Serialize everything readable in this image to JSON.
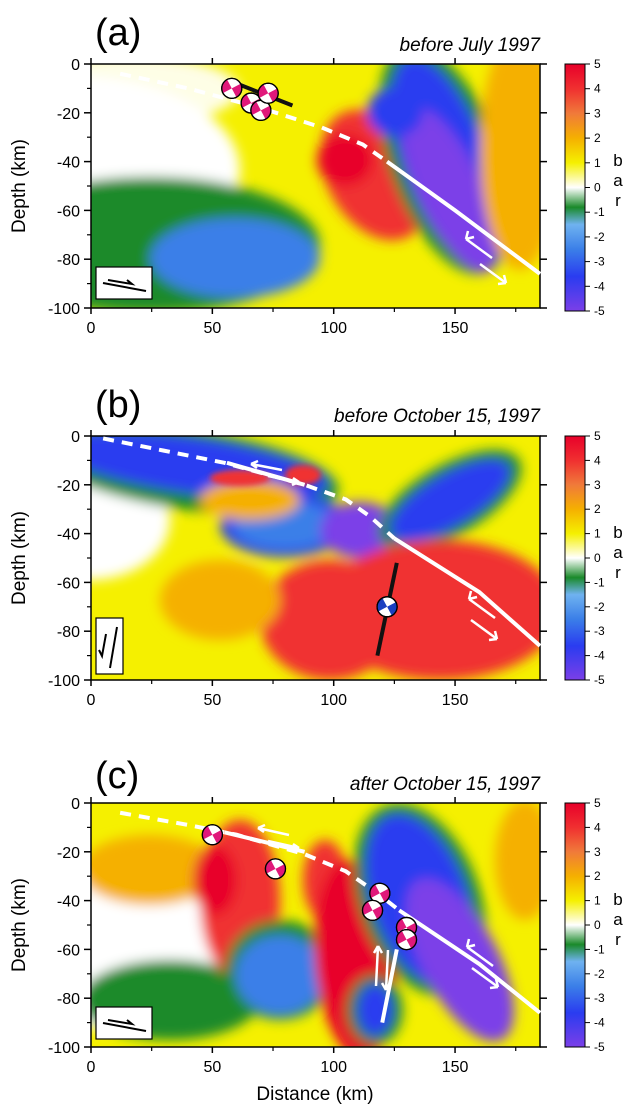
{
  "figure": {
    "xlabel": "Distance (km)",
    "colorbar": {
      "unit_letters": [
        "b",
        "a",
        "r"
      ],
      "ticks": [
        5,
        4,
        3,
        2,
        1,
        0,
        -1,
        -2,
        -3,
        -4,
        -5
      ],
      "range": [
        -5,
        5
      ],
      "colors": [
        "#7b3fe8",
        "#2a3cf0",
        "#3b7fe8",
        "#6fb2f0",
        "#1a8a2a",
        "#ffffff",
        "#f5f000",
        "#f5b000",
        "#f07a3a",
        "#f03030",
        "#e8002a"
      ]
    }
  },
  "chart_data": [
    {
      "type": "heatmap",
      "panel_label": "(a)",
      "title": "before July 1997",
      "ylabel": "Depth (km)",
      "xlabel": "",
      "xlim": [
        0,
        185
      ],
      "ylim": [
        -100,
        0
      ],
      "xticks": [
        0,
        50,
        100,
        150
      ],
      "yticks": [
        0,
        -20,
        -40,
        -60,
        -80,
        -100
      ],
      "fault_trace_dashed": [
        [
          12,
          -4
        ],
        [
          40,
          -10
        ],
        [
          70,
          -18
        ],
        [
          95,
          -26
        ],
        [
          112,
          -33
        ],
        [
          122,
          -40
        ]
      ],
      "fault_trace_solid": [
        [
          122,
          -40
        ],
        [
          150,
          -60
        ],
        [
          185,
          -86
        ]
      ],
      "rupture_segment": [
        [
          60,
          -8
        ],
        [
          83,
          -17
        ]
      ],
      "mechanisms": [
        [
          58,
          -10
        ],
        [
          66,
          -16
        ],
        [
          70,
          -19
        ],
        [
          73,
          -12
        ]
      ],
      "inset_icon": "thrust-slip-icon"
    },
    {
      "type": "heatmap",
      "panel_label": "(b)",
      "title": "before October 15, 1997",
      "ylabel": "Depth (km)",
      "xlabel": "",
      "xlim": [
        0,
        185
      ],
      "ylim": [
        -100,
        0
      ],
      "xticks": [
        0,
        50,
        100,
        150
      ],
      "yticks": [
        0,
        -20,
        -40,
        -60,
        -80,
        -100
      ],
      "fault_trace_dashed": [
        [
          5,
          -1
        ],
        [
          30,
          -6
        ],
        [
          55,
          -11
        ],
        [
          88,
          -20
        ],
        [
          105,
          -26
        ],
        [
          115,
          -33
        ],
        [
          125,
          -42
        ]
      ],
      "fault_trace_solid": [
        [
          56,
          -11
        ],
        [
          88,
          -20
        ]
      ],
      "fault_trace_solid_2": [
        [
          125,
          -42
        ],
        [
          160,
          -64
        ],
        [
          185,
          -86
        ]
      ],
      "rupture_segment": [
        [
          118,
          -90
        ],
        [
          126,
          -52
        ]
      ],
      "mechanisms": [
        [
          122,
          -70
        ]
      ],
      "inset_icon": "normal-slip-icon"
    },
    {
      "type": "heatmap",
      "panel_label": "(c)",
      "title": "after October 15, 1997",
      "ylabel": "Depth (km)",
      "xlabel": "Distance (km)",
      "xlim": [
        0,
        185
      ],
      "ylim": [
        -100,
        0
      ],
      "xticks": [
        0,
        50,
        100,
        150
      ],
      "yticks": [
        0,
        -20,
        -40,
        -60,
        -80,
        -100
      ],
      "fault_trace_dashed": [
        [
          12,
          -4
        ],
        [
          40,
          -9
        ],
        [
          60,
          -13
        ],
        [
          88,
          -21
        ],
        [
          105,
          -28
        ],
        [
          118,
          -37
        ],
        [
          127,
          -44
        ]
      ],
      "fault_trace_solid": [
        [
          55,
          -12
        ],
        [
          88,
          -20
        ]
      ],
      "fault_trace_solid_2": [
        [
          127,
          -44
        ],
        [
          160,
          -66
        ],
        [
          185,
          -86
        ]
      ],
      "rupture_segment": [
        [
          120,
          -90
        ],
        [
          126,
          -60
        ]
      ],
      "mechanisms": [
        [
          50,
          -13
        ],
        [
          76,
          -27
        ],
        [
          119,
          -37
        ],
        [
          116,
          -44
        ],
        [
          130,
          -51
        ],
        [
          130,
          -56
        ]
      ],
      "inset_icon": "thrust-slip-icon"
    }
  ]
}
